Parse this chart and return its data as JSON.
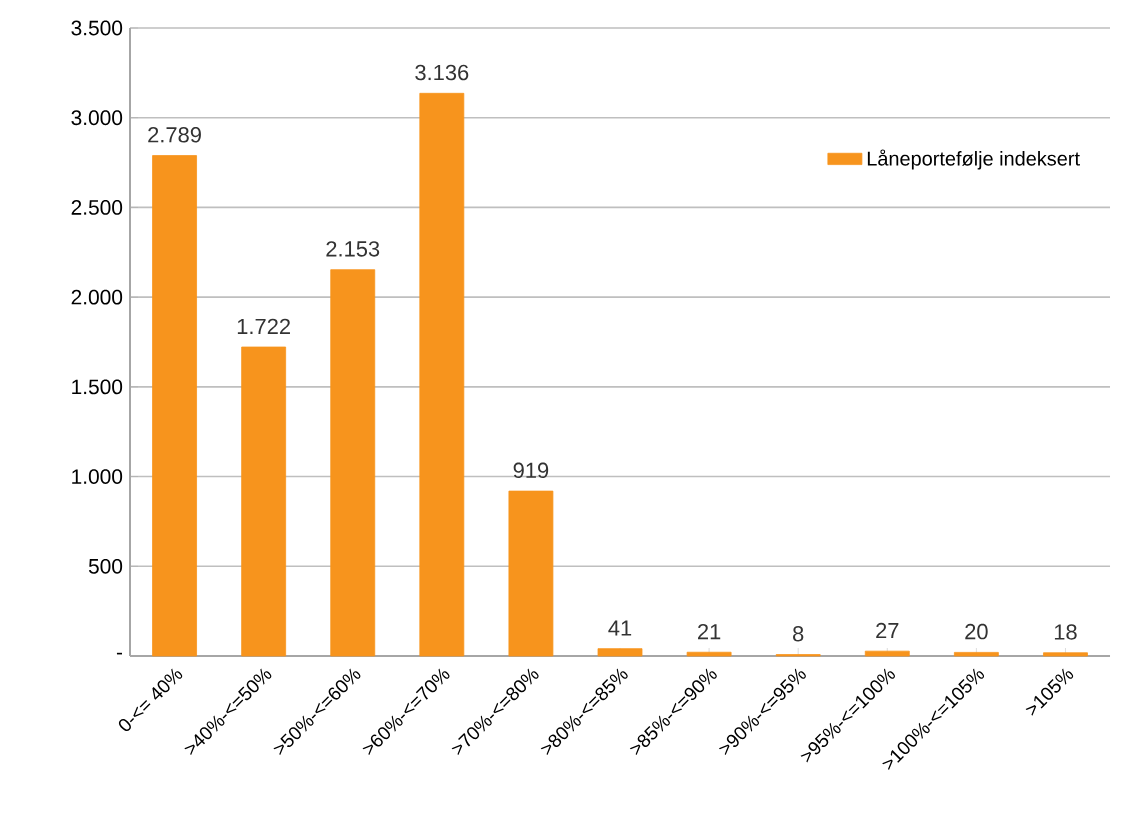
{
  "chart_data": {
    "type": "bar",
    "categories": [
      "0-<= 40%",
      ">40%-<=50%",
      ">50%-<=60%",
      ">60%-<=70%",
      ">70%-<=80%",
      ">80%-<=85%",
      ">85%-<=90%",
      ">90%-<=95%",
      ">95%-<=100%",
      ">100%-<=105%",
      ">105%"
    ],
    "series": [
      {
        "name": "Låneportefølje indeksert",
        "color": "#f7941d",
        "values": [
          2789,
          1722,
          2153,
          3136,
          919,
          41,
          21,
          8,
          27,
          20,
          18
        ],
        "value_labels": [
          "2.789",
          "1.722",
          "2.153",
          "3.136",
          "919",
          "41",
          "21",
          "8",
          "27",
          "20",
          "18"
        ]
      }
    ],
    "ylim": [
      0,
      3500
    ],
    "yticks": [
      {
        "value": 0,
        "label": "-"
      },
      500,
      {
        "value": 1000,
        "label": "1.000"
      },
      {
        "value": 1500,
        "label": "1.500"
      },
      {
        "value": 2000,
        "label": "2.000"
      },
      {
        "value": 2500,
        "label": "2.500"
      },
      {
        "value": 3000,
        "label": "3.000"
      },
      {
        "value": 3500,
        "label": "3.500"
      }
    ],
    "grid": "y",
    "legend": "top right"
  }
}
